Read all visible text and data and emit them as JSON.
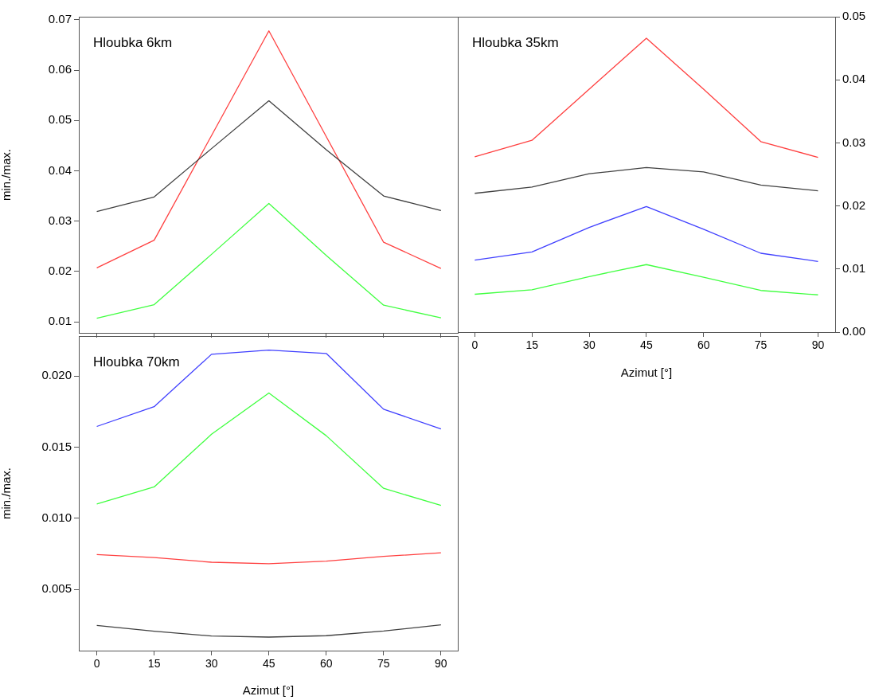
{
  "chart_data": [
    {
      "type": "line",
      "title": "Hloubka 6km",
      "ylabel": "min./max.",
      "x": [
        0,
        15,
        30,
        45,
        60,
        75,
        90
      ],
      "xlim": [
        -4.7,
        94.4
      ],
      "xticks": [
        0,
        15,
        30,
        45,
        60,
        75,
        90
      ],
      "ylim": [
        0.0078,
        0.0706
      ],
      "yticks": [
        0.01,
        0.02,
        0.03,
        0.04,
        0.05,
        0.06,
        0.07
      ],
      "tick_labels": "y",
      "series": [
        {
          "color": "#404040",
          "values": [
            0.0319,
            0.0348,
            0.0444,
            0.0539,
            0.0442,
            0.035,
            0.0321
          ]
        },
        {
          "color": "#ff4040",
          "values": [
            0.0207,
            0.0262,
            0.047,
            0.0678,
            0.0468,
            0.0258,
            0.0206
          ]
        },
        {
          "color": "#40ff40",
          "values": [
            0.0107,
            0.0134,
            0.0234,
            0.0335,
            0.0232,
            0.0133,
            0.0108
          ]
        }
      ]
    },
    {
      "type": "line",
      "title": "Hloubka 35km",
      "xlabel": "Azimut [°]",
      "x": [
        0,
        15,
        30,
        45,
        60,
        75,
        90
      ],
      "xlim": [
        -4.45,
        94.5
      ],
      "xticks": [
        0,
        15,
        30,
        45,
        60,
        75,
        90
      ],
      "ylim": [
        0,
        0.05
      ],
      "yticks": [
        {
          "value": 0,
          "label": "0.00"
        },
        0.01,
        0.02,
        0.03,
        0.04,
        0.05
      ],
      "series": [
        {
          "color": "#ff4040",
          "values": [
            0.0278,
            0.0304,
            0.0385,
            0.0466,
            0.0385,
            0.0302,
            0.0277
          ]
        },
        {
          "color": "#404040",
          "values": [
            0.022,
            0.023,
            0.0251,
            0.0261,
            0.0254,
            0.0233,
            0.0224
          ]
        },
        {
          "color": "#4040ff",
          "values": [
            0.0114,
            0.0127,
            0.0166,
            0.0199,
            0.0163,
            0.0125,
            0.0112
          ]
        },
        {
          "color": "#40ff40",
          "values": [
            0.006,
            0.0067,
            0.0088,
            0.0107,
            0.0087,
            0.0066,
            0.0059
          ]
        }
      ]
    },
    {
      "type": "line",
      "title": "Hloubka 70km",
      "xlabel": "Azimut [°]",
      "ylabel": "min./max.",
      "x": [
        0,
        15,
        30,
        45,
        60,
        75,
        90
      ],
      "xlim": [
        -4.7,
        94.4
      ],
      "xticks": [
        0,
        15,
        30,
        45,
        60,
        75,
        90
      ],
      "ylim": [
        0.0007,
        0.0228
      ],
      "yticks": [
        {
          "value": 0.005,
          "label": "0.005"
        },
        {
          "value": 0.01,
          "label": "0.010"
        },
        {
          "value": 0.015,
          "label": "0.015"
        },
        {
          "value": 0.02,
          "label": "0.020"
        }
      ],
      "series": [
        {
          "color": "#4040ff",
          "values": [
            0.01645,
            0.01784,
            0.02152,
            0.02181,
            0.02158,
            0.01766,
            0.01628
          ]
        },
        {
          "color": "#40ff40",
          "values": [
            0.011,
            0.0122,
            0.0159,
            0.0188,
            0.0158,
            0.0121,
            0.0109
          ]
        },
        {
          "color": "#ff4040",
          "values": [
            0.00745,
            0.00724,
            0.00691,
            0.00681,
            0.00699,
            0.00732,
            0.00757
          ]
        },
        {
          "color": "#404040",
          "values": [
            0.00247,
            0.00206,
            0.00173,
            0.00165,
            0.00175,
            0.00208,
            0.00251
          ]
        }
      ]
    }
  ]
}
